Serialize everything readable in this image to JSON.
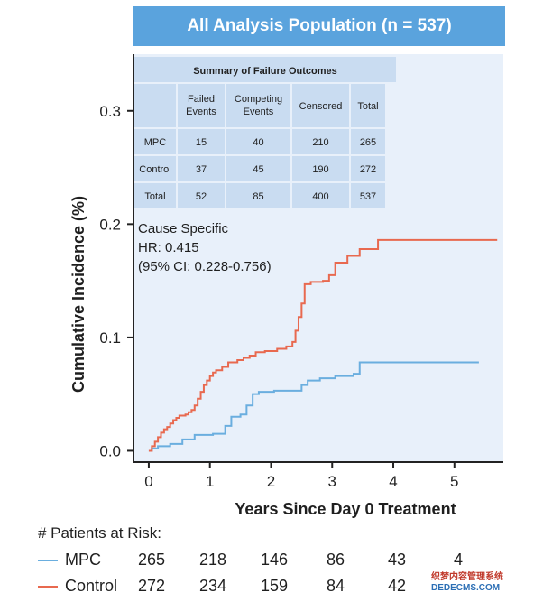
{
  "banner_title": "All Analysis Population (n = 537)",
  "colors": {
    "mpc": "#6aaedf",
    "control": "#e8694f",
    "banner": "#5aa3dd",
    "plot_bg": "#e8f0fa",
    "table_bg": "#c9dcf1"
  },
  "summary_table": {
    "title": "Summary of Failure Outcomes",
    "headers": [
      "",
      "Failed Events",
      "Competing Events",
      "Censored",
      "Total"
    ],
    "rows": [
      [
        "MPC",
        "15",
        "40",
        "210",
        "265"
      ],
      [
        "Control",
        "37",
        "45",
        "190",
        "272"
      ],
      [
        "Total",
        "52",
        "85",
        "400",
        "537"
      ]
    ]
  },
  "annotation": {
    "line1": "Cause Specific",
    "line2": "HR: 0.415",
    "line3": "(95% CI: 0.228-0.756)"
  },
  "risk_table": {
    "title": "# Patients at Risk:",
    "rows": [
      {
        "label": "MPC",
        "values": [
          "265",
          "218",
          "146",
          "86",
          "43",
          "4"
        ]
      },
      {
        "label": "Control",
        "values": [
          "272",
          "234",
          "159",
          "84",
          "42",
          ""
        ]
      }
    ]
  },
  "watermark": {
    "line1": "织梦内容管理系统",
    "line2": "DEDECMS.COM"
  },
  "chart_data": {
    "type": "line",
    "title": "",
    "xlabel": "Years Since Day 0 Treatment",
    "ylabel": "Cumulative Incidence (%)",
    "xlim": [
      -0.25,
      5.8
    ],
    "ylim": [
      -0.01,
      0.35
    ],
    "x_ticks": [
      0,
      1,
      2,
      3,
      4,
      5
    ],
    "x_tick_labels": [
      "0",
      "1",
      "2",
      "3",
      "4",
      "5"
    ],
    "y_ticks": [
      0.0,
      0.1,
      0.2,
      0.3
    ],
    "y_tick_labels": [
      "0.0",
      "0.1",
      "0.2",
      "0.3"
    ],
    "grid": false,
    "legend": "none",
    "series": [
      {
        "name": "MPC",
        "x": [
          0,
          0.05,
          0.15,
          0.35,
          0.55,
          0.75,
          1.05,
          1.25,
          1.35,
          1.5,
          1.6,
          1.7,
          1.8,
          2.05,
          2.5,
          2.6,
          2.8,
          3.05,
          3.35,
          3.45,
          5.4
        ],
        "y": [
          0,
          0.002,
          0.004,
          0.006,
          0.01,
          0.014,
          0.015,
          0.022,
          0.03,
          0.032,
          0.04,
          0.05,
          0.052,
          0.053,
          0.058,
          0.062,
          0.064,
          0.066,
          0.068,
          0.078,
          0.078
        ]
      },
      {
        "name": "Control",
        "x": [
          0,
          0.05,
          0.1,
          0.15,
          0.2,
          0.25,
          0.3,
          0.35,
          0.4,
          0.45,
          0.5,
          0.6,
          0.65,
          0.7,
          0.75,
          0.8,
          0.85,
          0.9,
          0.95,
          1.0,
          1.05,
          1.1,
          1.2,
          1.3,
          1.45,
          1.55,
          1.65,
          1.75,
          1.9,
          2.1,
          2.25,
          2.35,
          2.4,
          2.45,
          2.5,
          2.55,
          2.65,
          2.85,
          2.95,
          3.05,
          3.25,
          3.45,
          3.75,
          5.7
        ],
        "y": [
          0,
          0.004,
          0.008,
          0.012,
          0.016,
          0.019,
          0.021,
          0.024,
          0.027,
          0.029,
          0.031,
          0.032,
          0.034,
          0.036,
          0.04,
          0.046,
          0.052,
          0.058,
          0.062,
          0.066,
          0.069,
          0.071,
          0.074,
          0.078,
          0.08,
          0.082,
          0.084,
          0.087,
          0.088,
          0.09,
          0.092,
          0.096,
          0.106,
          0.118,
          0.13,
          0.147,
          0.149,
          0.15,
          0.155,
          0.166,
          0.172,
          0.178,
          0.186,
          0.186
        ]
      }
    ]
  }
}
